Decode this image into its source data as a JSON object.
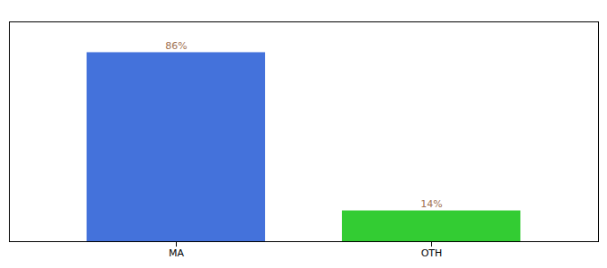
{
  "chart_data": {
    "type": "bar",
    "categories": [
      "MA",
      "OTH"
    ],
    "values": [
      86,
      14
    ],
    "value_labels": [
      "86%",
      "14%"
    ],
    "colors": [
      "#4472db",
      "#33cc33"
    ],
    "ylim": [
      0,
      100
    ],
    "data_labels": true,
    "tick_labels": "x"
  }
}
